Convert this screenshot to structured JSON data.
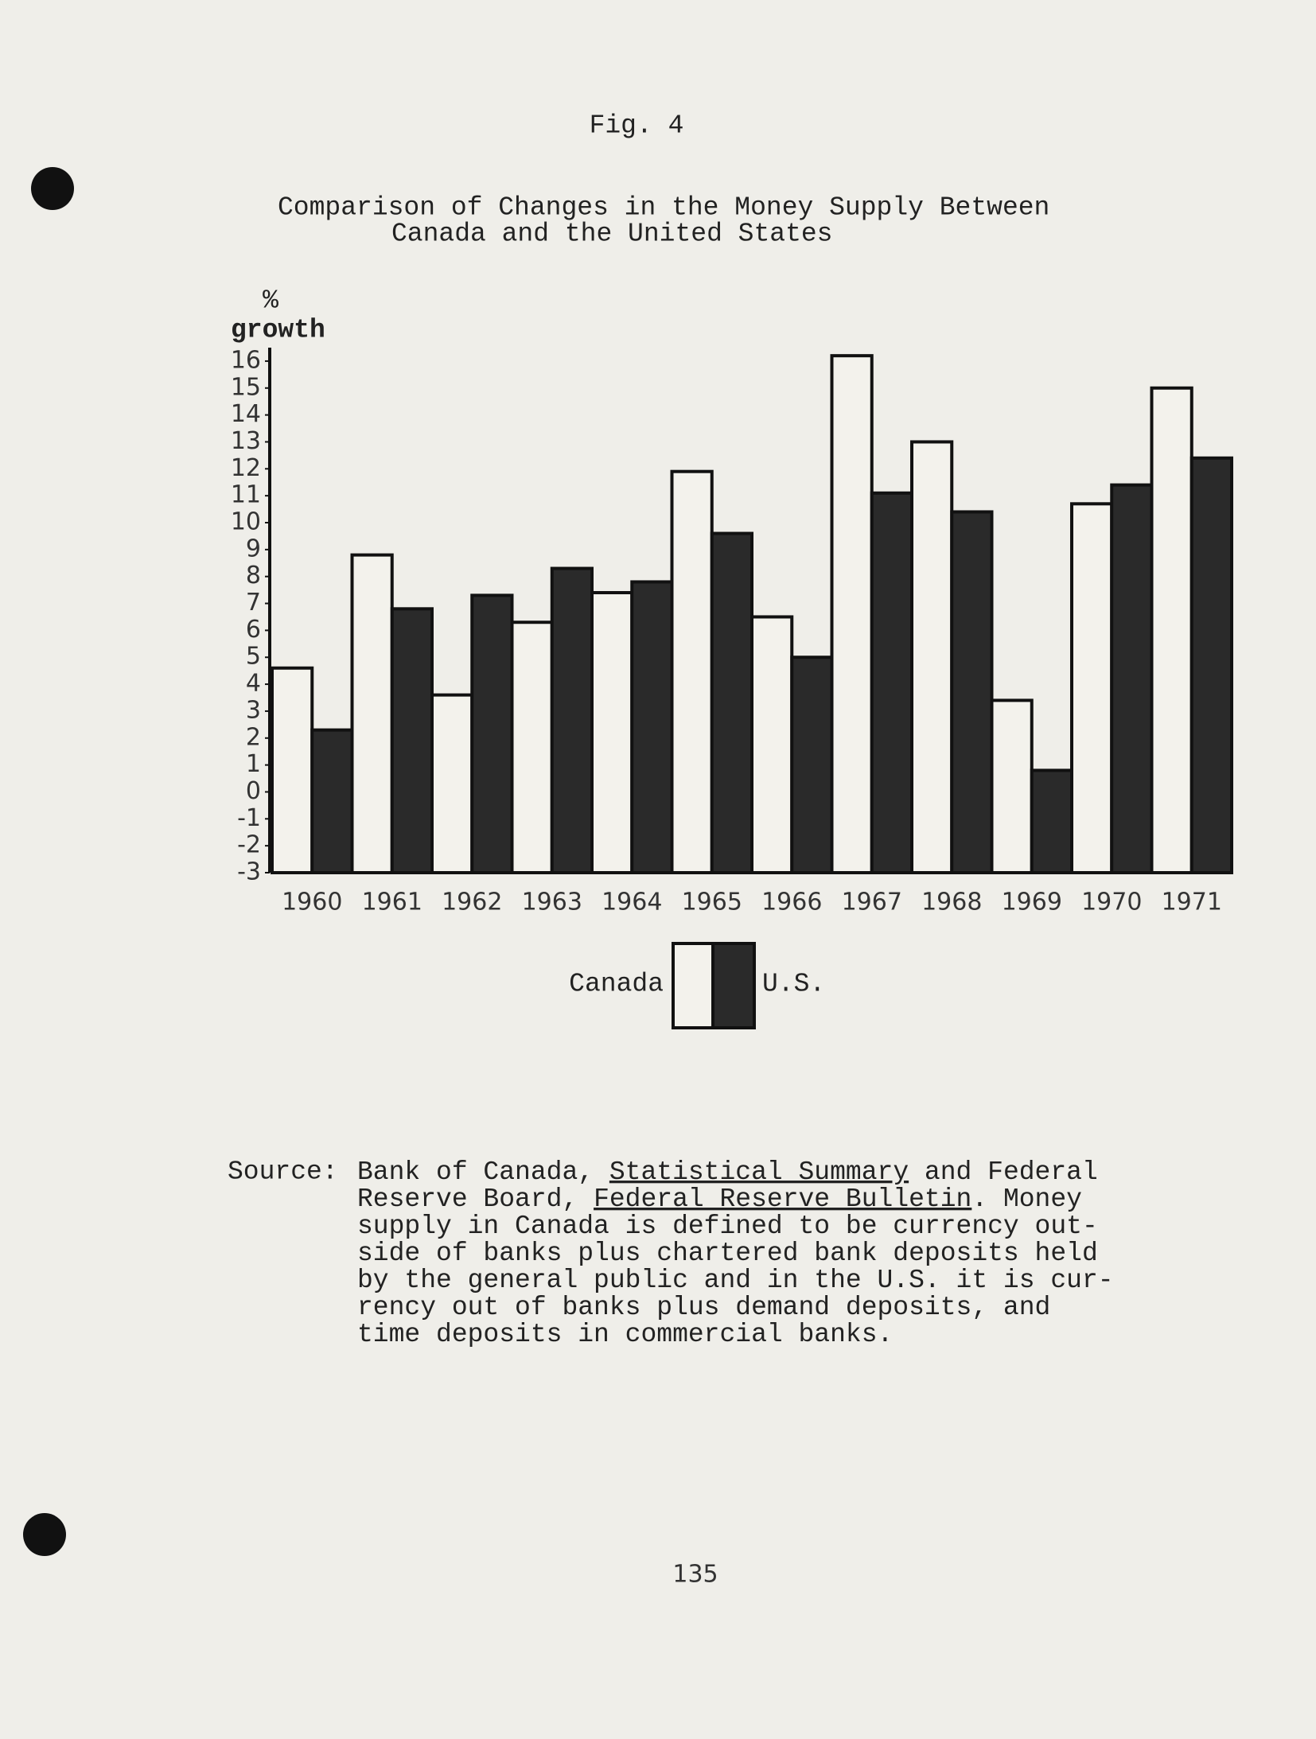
{
  "figure_label": "Fig. 4",
  "chart_data": {
    "type": "bar",
    "title": [
      "Comparison of Changes in the Money Supply Between",
      "Canada and the United States"
    ],
    "y_label": [
      "%",
      "growth"
    ],
    "categories": [
      "1960",
      "1961",
      "1962",
      "1963",
      "1964",
      "1965",
      "1966",
      "1967",
      "1968",
      "1969",
      "1970",
      "1971"
    ],
    "series": [
      {
        "name": "Canada",
        "color": "#f3f2ec",
        "values": [
          4.6,
          8.8,
          3.6,
          6.3,
          7.4,
          11.9,
          6.5,
          16.2,
          13.0,
          3.4,
          10.7,
          15.0
        ]
      },
      {
        "name": "U.S.",
        "color": "#2a2a2a",
        "values": [
          2.3,
          6.8,
          7.3,
          8.3,
          7.8,
          9.6,
          5.0,
          11.1,
          10.4,
          0.8,
          11.4,
          12.4
        ]
      }
    ],
    "ylim": [
      -3,
      16.5
    ],
    "yticks": [
      -3,
      -2,
      -1,
      0,
      1,
      2,
      3,
      4,
      5,
      6,
      7,
      8,
      9,
      10,
      11,
      12,
      13,
      14,
      15,
      16
    ],
    "grid": false
  },
  "source": {
    "label": "Source:",
    "lines": [
      [
        {
          "text": "Bank of Canada, ",
          "underline": false
        },
        {
          "text": "Statistical Summary",
          "underline": true
        },
        {
          "text": " and Federal",
          "underline": false
        }
      ],
      [
        {
          "text": "Reserve Board, ",
          "underline": false
        },
        {
          "text": "Federal Reserve Bulletin",
          "underline": true
        },
        {
          "text": ".  Money",
          "underline": false
        }
      ],
      [
        {
          "text": "supply in Canada is defined to be currency out-",
          "underline": false
        }
      ],
      [
        {
          "text": "side of banks plus chartered bank deposits held",
          "underline": false
        }
      ],
      [
        {
          "text": "by the general public and in the U.S. it is cur-",
          "underline": false
        }
      ],
      [
        {
          "text": "rency out of banks plus demand deposits, and",
          "underline": false
        }
      ],
      [
        {
          "text": "time deposits in commercial banks.",
          "underline": false
        }
      ]
    ]
  },
  "page_number": "135"
}
